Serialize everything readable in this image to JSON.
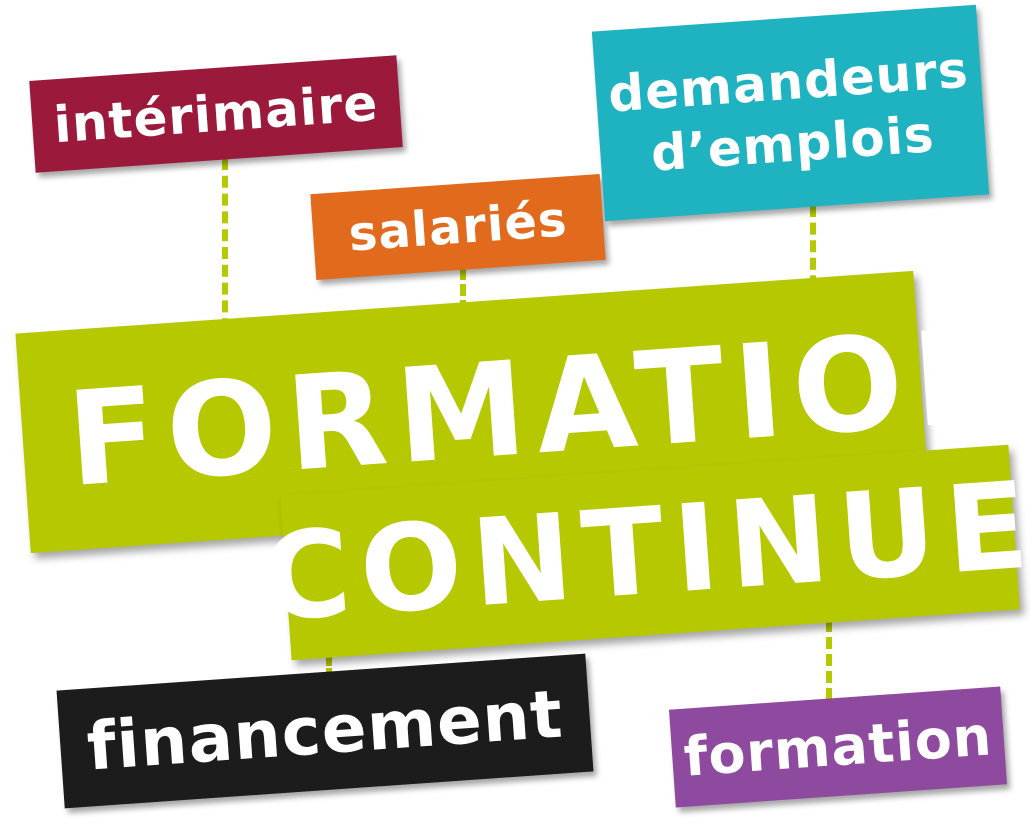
{
  "tags": {
    "interimaire": "intérimaire",
    "salaries": "salariés",
    "demandeurs_line1": "demandeurs",
    "demandeurs_line2": "d’emplois",
    "formation_main": "FORMATION",
    "continue": "CONTINUE",
    "financement": "financement",
    "formation_small": "formation"
  },
  "colors": {
    "interimaire": "#9b1a3c",
    "salaries": "#e26a1c",
    "demandeurs": "#1fb3c1",
    "green": "#b5c800",
    "financement": "#1c1c1c",
    "formation": "#8e4a9e",
    "connector": "#b5c800"
  }
}
